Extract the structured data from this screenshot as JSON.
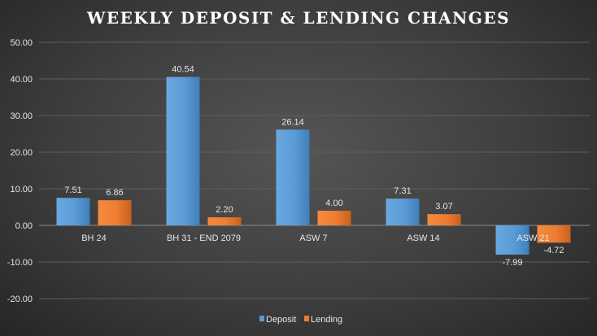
{
  "chart_data": {
    "type": "bar",
    "title": "WEEKLY DEPOSIT  & LENDING CHANGES",
    "categories": [
      "BH 24",
      "BH 31 - END 2079",
      "ASW 7",
      "ASW 14",
      "ASW 21"
    ],
    "series": [
      {
        "name": "Deposit",
        "values": [
          7.51,
          40.54,
          26.14,
          7.31,
          -7.99
        ],
        "labels": [
          "7.51",
          "40.54",
          "26.14",
          "7.31",
          "-7.99"
        ],
        "color": "#5b9bd5"
      },
      {
        "name": "Lending",
        "values": [
          6.86,
          2.2,
          4.0,
          3.07,
          -4.72
        ],
        "labels": [
          "6.86",
          "2.20",
          "4.00",
          "3.07",
          "-4.72"
        ],
        "color": "#ed7d31"
      }
    ],
    "ylim": [
      -20,
      50
    ],
    "yticks": [
      50,
      40,
      30,
      20,
      10,
      0,
      -10,
      -20
    ],
    "ytick_labels": [
      "50.00",
      "40.00",
      "30.00",
      "20.00",
      "10.00",
      "0.00",
      "-10.00",
      "-20.00"
    ],
    "grid": true,
    "legend_position": "bottom",
    "xlabel": "",
    "ylabel": ""
  }
}
